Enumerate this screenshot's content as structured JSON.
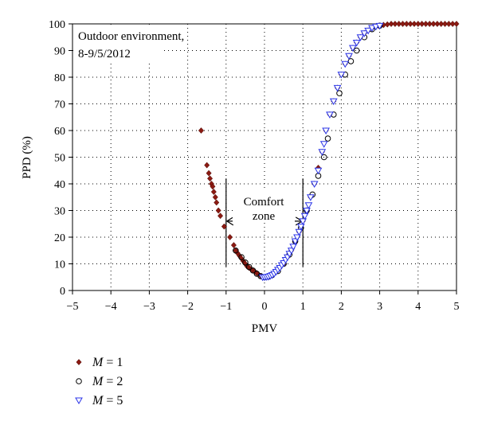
{
  "chart_data": {
    "type": "scatter",
    "title": "",
    "xlabel": "PMV",
    "ylabel": "PPD (%)",
    "xlim": [
      -5,
      5
    ],
    "ylim": [
      0,
      100
    ],
    "x_ticks": [
      -5,
      -4,
      -3,
      -2,
      -1,
      0,
      1,
      2,
      3,
      4,
      5
    ],
    "y_ticks": [
      0,
      10,
      20,
      30,
      40,
      50,
      60,
      70,
      80,
      90,
      100
    ],
    "x_tick_labels": [
      "−5",
      "−4",
      "−3",
      "−2",
      "−1",
      "0",
      "1",
      "2",
      "3",
      "4",
      "5"
    ],
    "y_tick_labels": [
      "0",
      "10",
      "20",
      "30",
      "40",
      "50",
      "60",
      "70",
      "80",
      "90",
      "100"
    ],
    "grid": true,
    "annotations": {
      "site_line1": "Outdoor environment,",
      "site_line2": "8-9/5/2012",
      "comfort_line1": "Comfort",
      "comfort_line2": "zone",
      "comfort_zone_pmv": [
        -1,
        1
      ],
      "comfort_arrow_ppd": 26
    },
    "legend_placement": "bottom-left",
    "series": [
      {
        "name": "M = 1",
        "marker": "diamond",
        "color": "#8b1a12",
        "x": [
          -1.65,
          -1.5,
          -1.45,
          -1.42,
          -1.38,
          -1.35,
          -1.32,
          -1.28,
          -1.25,
          -1.2,
          -1.15,
          -1.05,
          -0.9,
          -0.8,
          -0.75,
          -0.7,
          -0.65,
          -0.6,
          -0.55,
          -0.5,
          -0.45,
          -0.4,
          -0.35,
          -0.3,
          -0.25,
          -0.2,
          -0.1,
          0.0,
          0.1,
          0.2,
          0.3,
          0.4,
          0.5,
          0.6,
          0.7,
          0.8,
          0.9,
          1.0,
          1.1,
          1.2,
          1.3,
          1.4,
          1.5,
          1.6,
          1.7,
          1.8,
          1.9,
          2.0,
          2.1,
          2.2,
          2.3,
          2.4,
          2.5,
          2.6,
          2.7,
          2.8,
          2.9,
          3.0,
          3.1,
          3.2,
          3.3,
          3.4,
          3.5,
          3.6,
          3.7,
          3.8,
          3.9,
          4.0,
          4.1,
          4.2,
          4.3,
          4.4,
          4.5,
          4.6,
          4.7,
          4.8,
          4.9,
          5.0
        ],
        "y": [
          60,
          47,
          44,
          42,
          40,
          39,
          37,
          35,
          33,
          30,
          28,
          24,
          20,
          17,
          15,
          14,
          13,
          12,
          11,
          10,
          9,
          8.5,
          8,
          7.5,
          7,
          6.5,
          5.5,
          5,
          5.2,
          5.8,
          7,
          8.5,
          10,
          12.5,
          15,
          18.5,
          22,
          26,
          30,
          35,
          40,
          46,
          52,
          60,
          66,
          71,
          76,
          81,
          85,
          88,
          91,
          93,
          95,
          96.5,
          97.5,
          98.5,
          99,
          99.3,
          99.6,
          99.8,
          100,
          100,
          100,
          100,
          100,
          100,
          100,
          100,
          100,
          100,
          100,
          100,
          100,
          100,
          100,
          100,
          100,
          100
        ]
      },
      {
        "name": "M = 2",
        "marker": "circle",
        "color": "#000000",
        "x": [
          -0.75,
          -0.6,
          -0.5,
          -0.4,
          -0.3,
          -0.2,
          -0.1,
          0.0,
          0.1,
          0.2,
          0.35,
          0.5,
          0.65,
          0.8,
          0.95,
          1.1,
          1.25,
          1.4,
          1.55,
          1.65,
          1.8,
          1.95,
          2.1,
          2.25,
          2.4,
          2.6,
          2.8,
          3.0
        ],
        "y": [
          15,
          12.5,
          10.5,
          8.8,
          7.5,
          6.3,
          5.4,
          5,
          5.2,
          5.8,
          7.3,
          10,
          13.5,
          18.5,
          23.5,
          30,
          36,
          43,
          50,
          57,
          66,
          74,
          81,
          86,
          90,
          95,
          98,
          99.3
        ]
      },
      {
        "name": "M = 5",
        "marker": "triangle-down",
        "color": "#2b35e8",
        "x": [
          -0.05,
          0.0,
          0.05,
          0.1,
          0.15,
          0.2,
          0.25,
          0.3,
          0.35,
          0.4,
          0.45,
          0.5,
          0.55,
          0.6,
          0.65,
          0.7,
          0.75,
          0.8,
          0.85,
          0.9,
          0.95,
          1.0,
          1.05,
          1.1,
          1.15,
          1.2,
          1.3,
          1.4,
          1.5,
          1.55,
          1.6,
          1.7,
          1.8,
          1.9,
          2.0,
          2.1,
          2.2,
          2.3,
          2.4,
          2.5,
          2.6,
          2.7,
          2.8,
          2.9,
          3.0
        ],
        "y": [
          5,
          5,
          5.1,
          5.2,
          5.5,
          5.8,
          6.3,
          7,
          7.8,
          8.5,
          9.5,
          10.3,
          11.5,
          12.5,
          13.8,
          15,
          16.5,
          18.5,
          20,
          22,
          24,
          26,
          28,
          30,
          32,
          35,
          40,
          45,
          52,
          55,
          60,
          66,
          71,
          76,
          81,
          85,
          88,
          91,
          93,
          95,
          96.5,
          97.5,
          98.5,
          99,
          99.3
        ]
      }
    ]
  },
  "legend": [
    {
      "symbol": "diamond",
      "name": "M",
      "eq": "= 1"
    },
    {
      "symbol": "circle",
      "name": "M",
      "eq": "= 2"
    },
    {
      "symbol": "triangle-down",
      "name": "M",
      "eq": "= 5"
    }
  ]
}
